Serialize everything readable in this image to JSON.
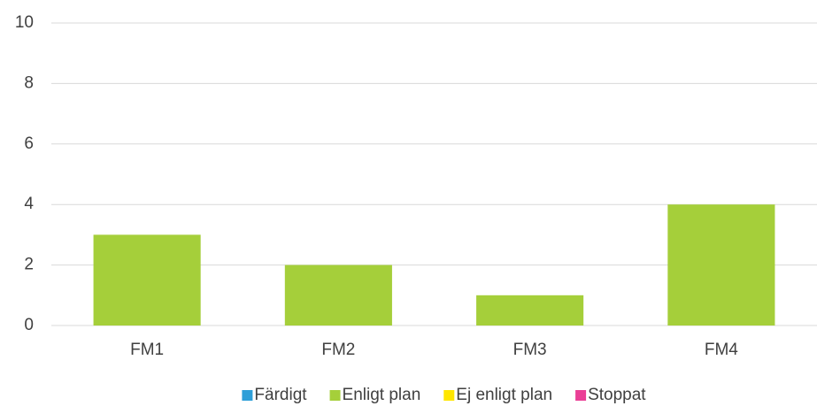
{
  "chart_data": {
    "type": "stacked_bar",
    "categories": [
      "FM1",
      "FM2",
      "FM3",
      "FM4"
    ],
    "series": [
      {
        "name": "Färdigt",
        "color": "#2e9fd8",
        "values": [
          0,
          0,
          0,
          0
        ]
      },
      {
        "name": "Enligt plan",
        "color": "#a5cf3a",
        "values": [
          3,
          2,
          1,
          4
        ]
      },
      {
        "name": "Ej enligt plan",
        "color": "#ffe600",
        "values": [
          0,
          0,
          0,
          0
        ]
      },
      {
        "name": "Stoppat",
        "color": "#ea3f96",
        "values": [
          0,
          0,
          0,
          0
        ]
      }
    ],
    "ylim": [
      0,
      10
    ],
    "yticks": [
      0,
      2,
      4,
      6,
      8,
      10
    ],
    "grid": true,
    "legend": "bottom"
  }
}
